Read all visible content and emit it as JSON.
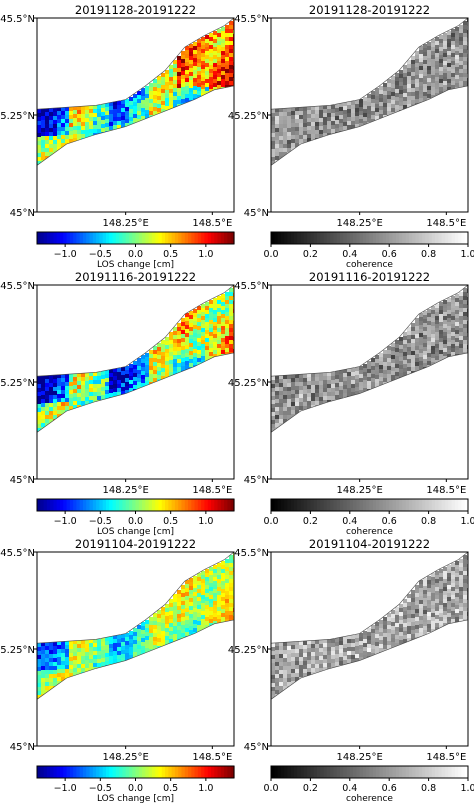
{
  "figure": {
    "rows": [
      {
        "date_range": "20191128-20191222"
      },
      {
        "date_range": "20191116-20191222"
      },
      {
        "date_range": "20191104-20191222"
      }
    ]
  },
  "chart_data": [
    {
      "type": "heatmap",
      "title": "20191128-20191222",
      "panel": "LOS change",
      "x_ticks": [
        "148.25°E",
        "148.5°E"
      ],
      "y_ticks": [
        "45.5°N",
        "45.25°N",
        "45°N"
      ],
      "colorbar": {
        "label": "LOS change [cm]",
        "ticks": [
          "−1.0",
          "−0.5",
          "0.0",
          "0.5",
          "1.0"
        ],
        "colormap": "jet",
        "range": [
          -1.4,
          1.4
        ]
      }
    },
    {
      "type": "heatmap",
      "title": "20191128-20191222",
      "panel": "coherence",
      "x_ticks": [
        "148.25°E",
        "148.5°E"
      ],
      "y_ticks": [
        "45.5°N",
        "45.25°N",
        "45°N"
      ],
      "colorbar": {
        "label": "coherence",
        "ticks": [
          "0.0",
          "0.2",
          "0.4",
          "0.6",
          "0.8",
          "1.0"
        ],
        "colormap": "gray",
        "range": [
          0,
          1
        ]
      }
    },
    {
      "type": "heatmap",
      "title": "20191116-20191222",
      "panel": "LOS change",
      "x_ticks": [
        "148.25°E",
        "148.5°E"
      ],
      "y_ticks": [
        "45.5°N",
        "45.25°N",
        "45°N"
      ],
      "colorbar": {
        "label": "LOS change [cm]",
        "ticks": [
          "−1.0",
          "−0.5",
          "0.0",
          "0.5",
          "1.0"
        ],
        "colormap": "jet",
        "range": [
          -1.4,
          1.4
        ]
      }
    },
    {
      "type": "heatmap",
      "title": "20191116-20191222",
      "panel": "coherence",
      "x_ticks": [
        "148.25°E",
        "148.5°E"
      ],
      "y_ticks": [
        "45.5°N",
        "45.25°N",
        "45°N"
      ],
      "colorbar": {
        "label": "coherence",
        "ticks": [
          "0.0",
          "0.2",
          "0.4",
          "0.6",
          "0.8",
          "1.0"
        ],
        "colormap": "gray",
        "range": [
          0,
          1
        ]
      }
    },
    {
      "type": "heatmap",
      "title": "20191104-20191222",
      "panel": "LOS change",
      "x_ticks": [
        "148.25°E",
        "148.5°E"
      ],
      "y_ticks": [
        "45.5°N",
        "45.25°N",
        "45°N"
      ],
      "colorbar": {
        "label": "LOS change [cm]",
        "ticks": [
          "−1.0",
          "−0.5",
          "0.0",
          "0.5",
          "1.0"
        ],
        "colormap": "jet",
        "range": [
          -1.4,
          1.4
        ]
      }
    },
    {
      "type": "heatmap",
      "title": "20191104-20191222",
      "panel": "coherence",
      "x_ticks": [
        "148.25°E",
        "148.5°E"
      ],
      "y_ticks": [
        "45.5°N",
        "45.25°N",
        "45°N"
      ],
      "colorbar": {
        "label": "coherence",
        "ticks": [
          "0.0",
          "0.2",
          "0.4",
          "0.6",
          "0.8",
          "1.0"
        ],
        "colormap": "gray",
        "range": [
          0,
          1
        ]
      }
    }
  ],
  "colors": {
    "jet": [
      "#00008f",
      "#0000ff",
      "#0080ff",
      "#00ffff",
      "#80ff80",
      "#ffff00",
      "#ff8000",
      "#ff0000",
      "#800000"
    ],
    "gray": [
      "#000000",
      "#ffffff"
    ],
    "axis": "#000000",
    "background": "#ffffff"
  }
}
